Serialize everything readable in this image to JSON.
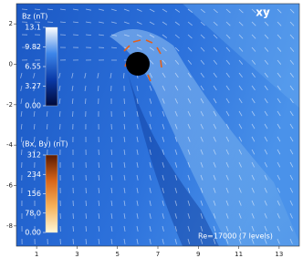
{
  "chart_data": {
    "type": "field",
    "title": "xy",
    "annotation": "Re=17000 (7 levels)",
    "xlim": [
      0,
      14
    ],
    "ylim": [
      -9,
      3
    ],
    "xticks": [
      1,
      3,
      5,
      7,
      9,
      11,
      13
    ],
    "yticks": [
      2,
      0,
      -2,
      -4,
      -6,
      -8
    ],
    "colorbars": [
      {
        "label": "Bz (nT)",
        "lim": [
          0,
          13.1
        ],
        "ticks": [
          13.1,
          9.82,
          6.55,
          3.27,
          {
            "value": 0,
            "label": "0.00"
          }
        ],
        "colors": [
          "#000a3a",
          "#0a3aa8",
          "#3d86ea",
          "#ffffff"
        ]
      },
      {
        "label": "(Bx, By) (nT)",
        "lim": [
          0,
          312
        ],
        "ticks": [
          312,
          234,
          156,
          {
            "value": 78,
            "label": "78.0"
          },
          {
            "value": 0,
            "label": "0.00"
          }
        ],
        "colors": [
          "#fff8d8",
          "#f6b25a",
          "#d9661a",
          "#5a1a00"
        ]
      }
    ]
  }
}
